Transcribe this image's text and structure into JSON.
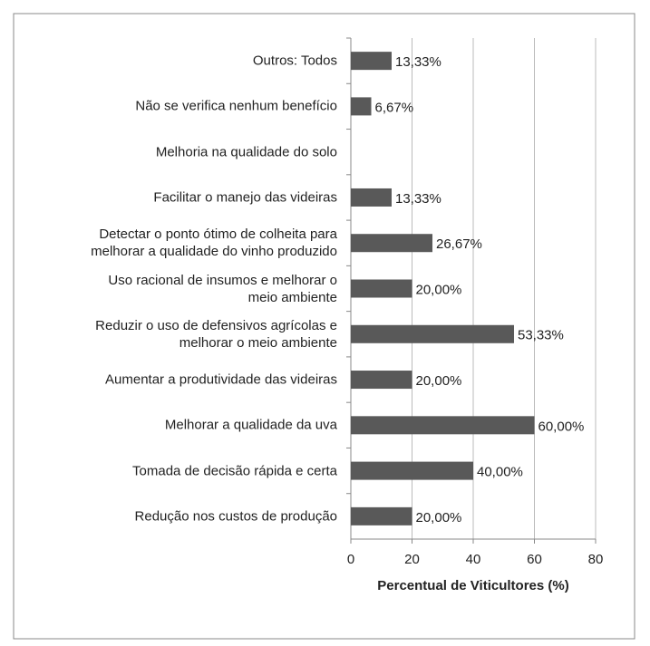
{
  "chart_data": {
    "type": "bar",
    "orientation": "horizontal",
    "categories": [
      "Outros: Todos",
      "Não se verifica nenhum benefício",
      "Melhoria na qualidade do solo",
      "Facilitar o manejo das videiras",
      "Detectar o ponto ótimo de colheita para\nmelhorar a qualidade do vinho produzido",
      "Uso racional de insumos e melhorar o\nmeio ambiente",
      "Reduzir o uso de defensivos agrícolas e\nmelhorar o meio ambiente",
      "Aumentar a produtividade das videiras",
      "Melhorar a qualidade da uva",
      "Tomada de decisão rápida e certa",
      "Redução nos custos de produção"
    ],
    "values": [
      13.33,
      6.67,
      0,
      13.33,
      26.67,
      20,
      53.33,
      20,
      60,
      40,
      20
    ],
    "value_labels": [
      "13,33%",
      "6,67%",
      null,
      "13,33%",
      "26,67%",
      "20,00%",
      "53,33%",
      "20,00%",
      "60,00%",
      "40,00%",
      "20,00%"
    ],
    "color": "#595959",
    "xlim": [
      0,
      80
    ],
    "xticks": [
      0,
      20,
      40,
      60,
      80
    ],
    "grid": true,
    "x_label": "Percentual de Viticultores (%)"
  }
}
